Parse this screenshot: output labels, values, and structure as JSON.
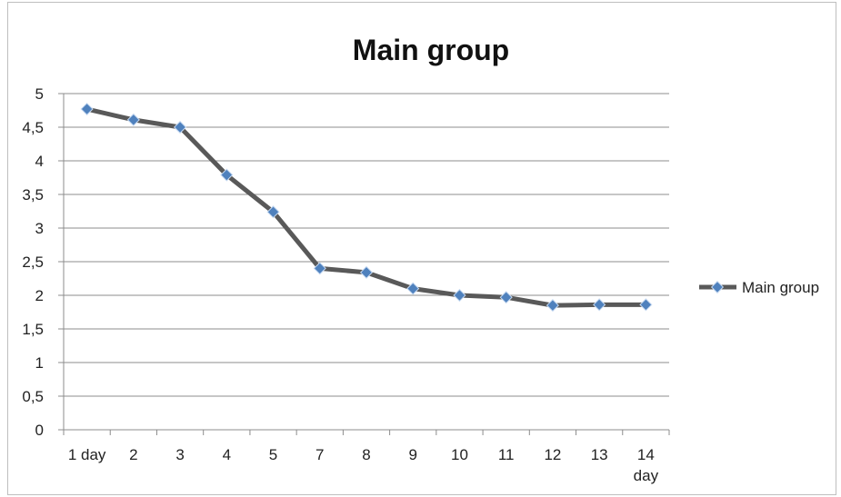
{
  "chart_data": {
    "type": "line",
    "title": "Main group",
    "categories": [
      "1 day",
      "2",
      "3",
      "4",
      "5",
      "7",
      "8",
      "9",
      "10",
      "11",
      "12",
      "13",
      "14 day"
    ],
    "series": [
      {
        "name": "Main group",
        "values": [
          4.77,
          4.61,
          4.5,
          3.79,
          3.24,
          2.4,
          2.34,
          2.1,
          2.0,
          1.97,
          1.85,
          1.86,
          1.86
        ],
        "line_color": "#595959",
        "marker_color": "#4f81bd"
      }
    ],
    "y_ticks": [
      "0",
      "0,5",
      "1",
      "1,5",
      "2",
      "2,5",
      "3",
      "3,5",
      "4",
      "4,5",
      "5"
    ],
    "ylim": [
      0,
      5
    ],
    "grid": true,
    "legend_position": "right"
  }
}
